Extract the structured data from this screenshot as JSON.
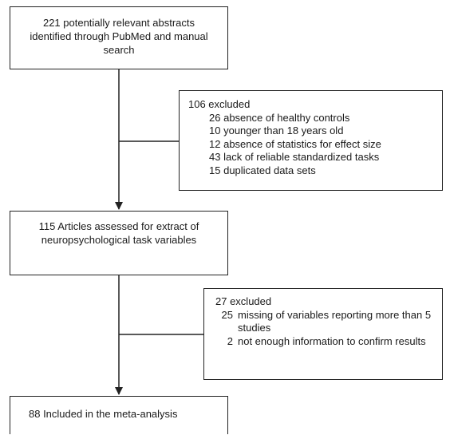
{
  "step1": {
    "text": "221 potentially relevant abstracts identified through PubMed and manual search"
  },
  "exclusion1": {
    "header": "106 excluded",
    "items": [
      {
        "count": "26",
        "label": "absence of healthy controls"
      },
      {
        "count": "10",
        "label": "younger than 18 years old"
      },
      {
        "count": "12",
        "label": "absence of statistics for effect size"
      },
      {
        "count": "43",
        "label": "lack of reliable standardized tasks"
      },
      {
        "count": "15",
        "label": "duplicated data sets"
      }
    ]
  },
  "step2": {
    "text": "115  Articles assessed for extract of neuropsychological task variables"
  },
  "exclusion2": {
    "header": "27 excluded",
    "items": [
      {
        "count": "25",
        "label": "missing of variables reporting more than 5 studies"
      },
      {
        "count": "2",
        "label": "not enough information to confirm results"
      }
    ]
  },
  "step3": {
    "text": "88 Included in the meta-analysis"
  }
}
